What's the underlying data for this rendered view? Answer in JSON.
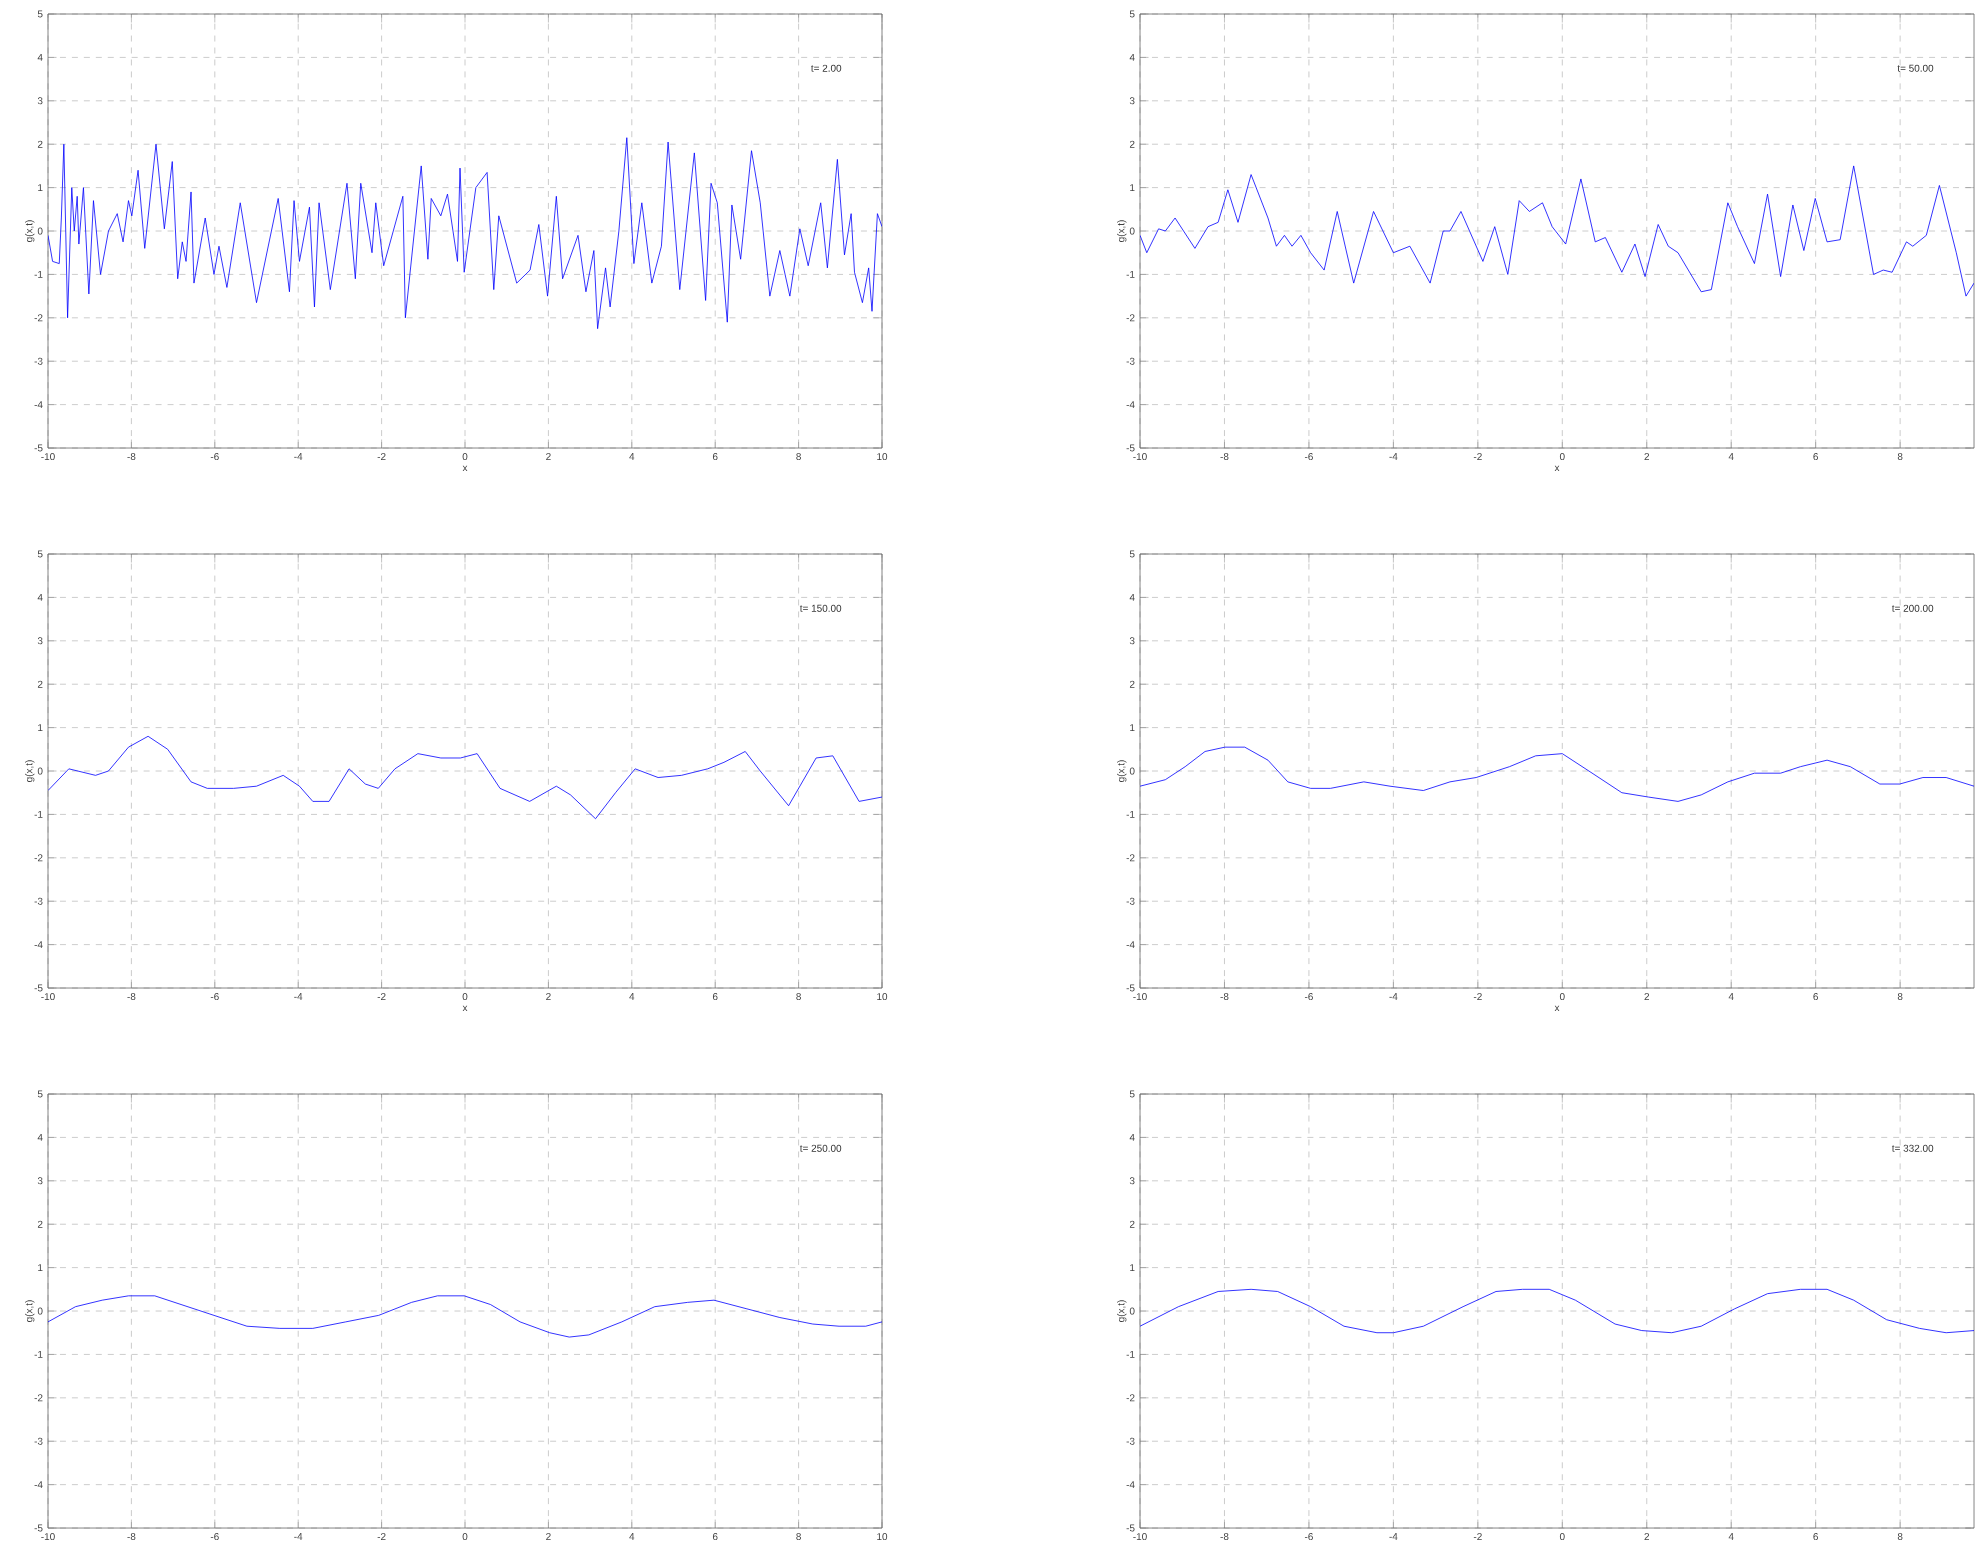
{
  "chart_data": [
    {
      "type": "line",
      "ylabel": "g(x,t)",
      "xlabel": "x",
      "annotations": [
        "t= 2.00"
      ],
      "color": "#0000ff",
      "line_style": "solid",
      "grid": true,
      "xlim": [
        -10,
        10
      ],
      "ylim": [
        -5,
        5
      ],
      "xticks": [
        -10,
        -8,
        -6,
        -4,
        -2,
        0,
        2,
        4,
        6,
        8,
        10
      ],
      "yticks": [
        -5,
        -4,
        -3,
        -2,
        -1,
        0,
        1,
        2,
        3,
        4,
        5
      ],
      "x": [
        -10,
        -9.89,
        -9.73,
        -9.68,
        -9.62,
        -9.53,
        -9.43,
        -9.37,
        -9.3,
        -9.26,
        -9.15,
        -9.02,
        -8.91,
        -8.74,
        -8.55,
        -8.34,
        -8.2,
        -8.07,
        -7.99,
        -7.84,
        -7.68,
        -7.41,
        -7.21,
        -7.02,
        -6.89,
        -6.78,
        -6.69,
        -6.57,
        -6.5,
        -6.23,
        -6.02,
        -5.9,
        -5.71,
        -5.39,
        -5.0,
        -4.48,
        -4.21,
        -4.1,
        -3.97,
        -3.73,
        -3.61,
        -3.5,
        -3.23,
        -2.83,
        -2.63,
        -2.5,
        -2.23,
        -2.14,
        -1.95,
        -1.49,
        -1.43,
        -1.05,
        -0.89,
        -0.81,
        -0.58,
        -0.42,
        -0.18,
        -0.12,
        -0.02,
        0.26,
        0.53,
        0.69,
        0.81,
        1.24,
        1.56,
        1.77,
        1.98,
        2.19,
        2.34,
        2.71,
        2.9,
        3.09,
        3.18,
        3.37,
        3.48,
        3.69,
        3.88,
        4.05,
        4.24,
        4.48,
        4.71,
        4.87,
        5.15,
        5.5,
        5.77,
        5.9,
        6.05,
        6.29,
        6.4,
        6.61,
        6.87,
        7.08,
        7.31,
        7.55,
        7.79,
        8.03,
        8.23,
        8.53,
        8.69,
        8.93,
        9.1,
        9.26,
        9.34,
        9.53,
        9.68,
        9.76,
        9.89,
        10
      ],
      "values": [
        -0.1,
        -0.7,
        -0.75,
        0.3,
        2.0,
        -2.0,
        1.0,
        0,
        0.8,
        -0.3,
        1.0,
        -1.45,
        0.7,
        -1.0,
        0,
        0.4,
        -0.25,
        0.7,
        0.35,
        1.4,
        -0.4,
        2.0,
        0.05,
        1.6,
        -1.1,
        -0.25,
        -0.7,
        0.9,
        -1.2,
        0.3,
        -1.0,
        -0.35,
        -1.3,
        0.65,
        -1.65,
        0.75,
        -1.4,
        0.7,
        -0.7,
        0.55,
        -1.75,
        0.65,
        -1.35,
        1.1,
        -1.1,
        1.1,
        -0.5,
        0.65,
        -0.8,
        0.8,
        -2.0,
        1.5,
        -0.65,
        0.75,
        0.35,
        0.85,
        -0.7,
        1.45,
        -0.95,
        1.0,
        1.35,
        -1.35,
        0.35,
        -1.2,
        -0.9,
        0.15,
        -1.5,
        0.8,
        -1.1,
        -0.1,
        -1.4,
        -0.45,
        -2.25,
        -0.85,
        -1.75,
        0,
        2.15,
        -0.75,
        0.65,
        -1.2,
        -0.35,
        2.05,
        -1.35,
        1.8,
        -1.6,
        1.1,
        0.65,
        -2.1,
        0.6,
        -0.65,
        1.85,
        0.65,
        -1.5,
        -0.45,
        -1.5,
        0.05,
        -0.8,
        0.65,
        -0.85,
        1.65,
        -0.55,
        0.4,
        -0.95,
        -1.65,
        -0.85,
        -1.85,
        0.4,
        0.1
      ]
    },
    {
      "type": "line",
      "ylabel": "g(x,t)",
      "xlabel": "x",
      "annotations": [
        "t= 50.00"
      ],
      "color": "#0000ff",
      "line_style": "solid",
      "grid": true,
      "xlim": [
        -10,
        9.75
      ],
      "ylim": [
        -5,
        5
      ],
      "xticks": [
        -10,
        -8,
        -6,
        -4,
        -2,
        0,
        2,
        4,
        6,
        8
      ],
      "yticks": [
        -5,
        -4,
        -3,
        -2,
        -1,
        0,
        1,
        2,
        3,
        4,
        5
      ],
      "x": [
        -10,
        -9.84,
        -9.56,
        -9.4,
        -9.17,
        -8.7,
        -8.39,
        -8.15,
        -7.92,
        -7.68,
        -7.37,
        -6.97,
        -6.77,
        -6.58,
        -6.4,
        -6.19,
        -5.96,
        -5.64,
        -5.33,
        -4.94,
        -4.47,
        -4.0,
        -3.61,
        -3.13,
        -2.82,
        -2.66,
        -2.4,
        -1.88,
        -1.6,
        -1.29,
        -1.02,
        -0.78,
        -0.47,
        -0.24,
        0.08,
        0.44,
        0.78,
        1.02,
        1.41,
        1.72,
        1.96,
        2.27,
        2.51,
        2.74,
        3.29,
        3.53,
        3.92,
        4.15,
        4.55,
        4.86,
        5.17,
        5.46,
        5.72,
        5.99,
        6.27,
        6.58,
        6.9,
        7.37,
        7.6,
        7.81,
        8.15,
        8.3,
        8.62,
        8.93,
        9.33,
        9.56,
        9.75
      ],
      "values": [
        -0.1,
        -0.5,
        0.05,
        0,
        0.3,
        -0.4,
        0.1,
        0.2,
        0.95,
        0.2,
        1.3,
        0.3,
        -0.35,
        -0.1,
        -0.35,
        -0.1,
        -0.5,
        -0.9,
        0.45,
        -1.2,
        0.45,
        -0.5,
        -0.35,
        -1.2,
        0,
        0,
        0.45,
        -0.7,
        0.1,
        -1.0,
        0.7,
        0.45,
        0.65,
        0.1,
        -0.3,
        1.2,
        -0.25,
        -0.15,
        -0.95,
        -0.3,
        -1.05,
        0.15,
        -0.35,
        -0.5,
        -1.4,
        -1.35,
        0.65,
        0.1,
        -0.75,
        0.85,
        -1.05,
        0.6,
        -0.45,
        0.75,
        -0.25,
        -0.2,
        1.5,
        -1.0,
        -0.9,
        -0.95,
        -0.25,
        -0.35,
        -0.1,
        1.05,
        -0.5,
        -1.5,
        -1.2
      ]
    },
    {
      "type": "line",
      "ylabel": "g(x,t)",
      "xlabel": "x",
      "annotations": [
        "t= 150.00"
      ],
      "color": "#0000ff",
      "line_style": "solid",
      "grid": true,
      "xlim": [
        -10,
        10
      ],
      "ylim": [
        -5,
        5
      ],
      "xticks": [
        -10,
        -8,
        -6,
        -4,
        -2,
        0,
        2,
        4,
        6,
        8,
        10
      ],
      "yticks": [
        -5,
        -4,
        -3,
        -2,
        -1,
        0,
        1,
        2,
        3,
        4,
        5
      ],
      "x": [
        -10,
        -9.5,
        -8.86,
        -8.55,
        -8.07,
        -7.6,
        -7.13,
        -6.57,
        -6.18,
        -5.55,
        -5.0,
        -4.36,
        -3.97,
        -3.65,
        -3.26,
        -2.78,
        -2.39,
        -2.08,
        -1.68,
        -1.13,
        -0.58,
        -0.11,
        0.29,
        0.84,
        1.55,
        2.19,
        2.53,
        3.13,
        3.61,
        4.08,
        4.63,
        5.19,
        5.82,
        6.21,
        6.72,
        7.08,
        7.76,
        8.42,
        8.82,
        9.45,
        10
      ],
      "values": [
        -0.45,
        0.05,
        -0.1,
        0,
        0.55,
        0.8,
        0.5,
        -0.25,
        -0.4,
        -0.4,
        -0.35,
        -0.1,
        -0.35,
        -0.7,
        -0.7,
        0.05,
        -0.3,
        -0.4,
        0.05,
        0.4,
        0.3,
        0.3,
        0.4,
        -0.4,
        -0.7,
        -0.35,
        -0.55,
        -1.1,
        -0.5,
        0.05,
        -0.15,
        -0.1,
        0.05,
        0.2,
        0.45,
        0,
        -0.8,
        0.3,
        0.35,
        -0.7,
        -0.6
      ]
    },
    {
      "type": "line",
      "ylabel": "g(x,t)",
      "xlabel": "x",
      "annotations": [
        "t= 200.00"
      ],
      "color": "#0000ff",
      "line_style": "solid",
      "grid": true,
      "xlim": [
        -10,
        9.75
      ],
      "ylim": [
        -5,
        5
      ],
      "xticks": [
        -10,
        -8,
        -6,
        -4,
        -2,
        0,
        2,
        4,
        6,
        8
      ],
      "yticks": [
        -5,
        -4,
        -3,
        -2,
        -1,
        0,
        1,
        2,
        3,
        4,
        5
      ],
      "x": [
        -10,
        -9.4,
        -8.93,
        -8.46,
        -7.99,
        -7.52,
        -6.97,
        -6.5,
        -5.96,
        -5.49,
        -4.7,
        -4.08,
        -3.29,
        -2.66,
        -2.04,
        -1.25,
        -0.63,
        0,
        0.63,
        1.41,
        2.04,
        2.74,
        3.29,
        3.92,
        4.55,
        5.17,
        5.64,
        6.27,
        6.82,
        7.52,
        7.99,
        8.54,
        9.09,
        9.75
      ],
      "values": [
        -0.35,
        -0.2,
        0.1,
        0.45,
        0.55,
        0.55,
        0.25,
        -0.25,
        -0.4,
        -0.4,
        -0.25,
        -0.35,
        -0.45,
        -0.25,
        -0.15,
        0.1,
        0.35,
        0.4,
        0,
        -0.5,
        -0.6,
        -0.7,
        -0.55,
        -0.25,
        -0.05,
        -0.05,
        0.1,
        0.25,
        0.1,
        -0.3,
        -0.3,
        -0.15,
        -0.15,
        -0.35
      ]
    },
    {
      "type": "line",
      "ylabel": "g(x,t)",
      "annotations": [
        "t= 250.00"
      ],
      "color": "#0000ff",
      "line_style": "solid",
      "grid": true,
      "xlim": [
        -10,
        10
      ],
      "ylim": [
        -5,
        5
      ],
      "xticks": [
        -10,
        -8,
        -6,
        -4,
        -2,
        0,
        2,
        4,
        6,
        8,
        10
      ],
      "yticks": [
        -5,
        -4,
        -3,
        -2,
        -1,
        0,
        1,
        2,
        3,
        4,
        5
      ],
      "x": [
        -10,
        -9.34,
        -8.7,
        -8.07,
        -7.44,
        -6.81,
        -6.02,
        -5.23,
        -4.44,
        -3.65,
        -2.86,
        -2.07,
        -1.28,
        -0.66,
        -0.02,
        0.61,
        1.32,
        2.03,
        2.5,
        2.97,
        3.76,
        4.55,
        5.34,
        5.97,
        6.76,
        7.55,
        8.34,
        8.97,
        9.61,
        10
      ],
      "values": [
        -0.25,
        0.1,
        0.25,
        0.35,
        0.35,
        0.15,
        -0.1,
        -0.35,
        -0.4,
        -0.4,
        -0.25,
        -0.1,
        0.2,
        0.35,
        0.35,
        0.15,
        -0.25,
        -0.5,
        -0.6,
        -0.55,
        -0.25,
        0.1,
        0.2,
        0.25,
        0.05,
        -0.15,
        -0.3,
        -0.35,
        -0.35,
        -0.25
      ]
    },
    {
      "type": "line",
      "ylabel": "g(x,t)",
      "annotations": [
        "t= 332.00"
      ],
      "color": "#0000ff",
      "line_style": "solid",
      "grid": true,
      "xlim": [
        -10,
        9.75
      ],
      "ylim": [
        -5,
        5
      ],
      "xticks": [
        -10,
        -8,
        -6,
        -4,
        -2,
        0,
        2,
        4,
        6,
        8
      ],
      "yticks": [
        -5,
        -4,
        -3,
        -2,
        -1,
        0,
        1,
        2,
        3,
        4,
        5
      ],
      "x": [
        -10,
        -9.09,
        -8.15,
        -7.37,
        -6.74,
        -5.96,
        -5.17,
        -4.39,
        -4.0,
        -3.29,
        -2.35,
        -1.57,
        -0.94,
        -0.31,
        0.31,
        1.25,
        1.88,
        2.59,
        3.29,
        4.08,
        4.86,
        5.64,
        6.27,
        6.9,
        7.68,
        8.46,
        9.09,
        9.75
      ],
      "values": [
        -0.35,
        0.1,
        0.45,
        0.5,
        0.45,
        0.1,
        -0.35,
        -0.5,
        -0.5,
        -0.35,
        0.1,
        0.45,
        0.5,
        0.5,
        0.25,
        -0.3,
        -0.45,
        -0.5,
        -0.35,
        0.05,
        0.4,
        0.5,
        0.5,
        0.25,
        -0.2,
        -0.4,
        -0.5,
        -0.45
      ]
    }
  ]
}
